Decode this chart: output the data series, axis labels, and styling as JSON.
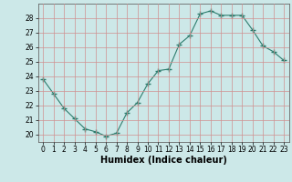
{
  "x": [
    0,
    1,
    2,
    3,
    4,
    5,
    6,
    7,
    8,
    9,
    10,
    11,
    12,
    13,
    14,
    15,
    16,
    17,
    18,
    19,
    20,
    21,
    22,
    23
  ],
  "y": [
    23.8,
    22.8,
    21.8,
    21.1,
    20.4,
    20.2,
    19.9,
    20.1,
    21.5,
    22.2,
    23.5,
    24.4,
    24.5,
    26.2,
    26.8,
    28.3,
    28.5,
    28.2,
    28.2,
    28.2,
    27.2,
    26.1,
    25.7,
    25.1
  ],
  "line_color": "#2d7d6e",
  "marker": "+",
  "marker_size": 4,
  "bg_color": "#cce8e8",
  "grid_color": "#d09090",
  "xlabel": "Humidex (Indice chaleur)",
  "ylabel_ticks": [
    20,
    21,
    22,
    23,
    24,
    25,
    26,
    27,
    28
  ],
  "ylim": [
    19.5,
    29.0
  ],
  "xlim": [
    -0.5,
    23.5
  ],
  "tick_fontsize": 5.5,
  "xlabel_fontsize": 7
}
